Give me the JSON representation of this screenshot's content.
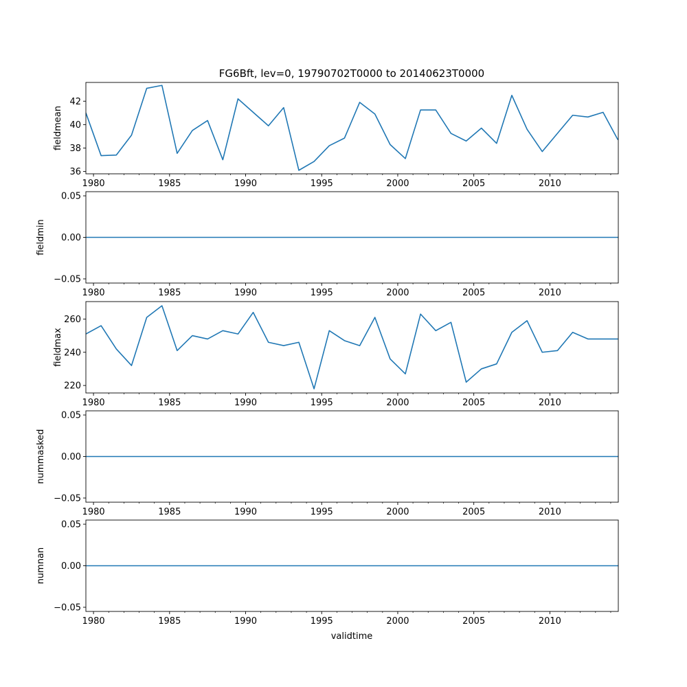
{
  "figure": {
    "title": "FG6Bft, lev=0, 19790702T0000 to 20140623T0000",
    "xlabel": "validtime",
    "line_color": "#1f77b4"
  },
  "chart_data": [
    {
      "type": "line",
      "ylabel": "fieldmean",
      "xlim": [
        "1979-07-02",
        "2014-07-02"
      ],
      "ylim": [
        35.8,
        43.6
      ],
      "yticks": [
        36,
        38,
        40,
        42
      ],
      "ytick_labels": [
        "36",
        "38",
        "40",
        "42"
      ],
      "xticks": [
        1980,
        1985,
        1990,
        1995,
        2000,
        2005,
        2010
      ],
      "xtick_labels": [
        "1980",
        "1985",
        "1990",
        "1995",
        "2000",
        "2005",
        "2010"
      ],
      "series": [
        {
          "x": [
            "1979-07-02",
            "1980-07-02",
            "1981-07-02",
            "1982-07-02",
            "1983-07-02",
            "1984-07-02",
            "1985-07-02",
            "1986-07-02",
            "1987-07-02",
            "1988-07-02",
            "1989-07-02",
            "1990-07-02",
            "1991-07-02",
            "1992-07-02",
            "1993-07-02",
            "1994-07-02",
            "1995-07-02",
            "1996-07-02",
            "1997-07-02",
            "1998-07-02",
            "1999-07-02",
            "2000-07-02",
            "2001-07-02",
            "2002-07-02",
            "2003-07-02",
            "2004-07-02",
            "2005-07-02",
            "2006-07-02",
            "2007-07-02",
            "2008-07-02",
            "2009-07-02",
            "2010-07-02",
            "2011-07-02",
            "2012-07-02",
            "2013-07-02",
            "2014-06-23"
          ],
          "values": [
            41.0,
            37.35,
            37.4,
            39.1,
            43.1,
            43.35,
            37.55,
            39.5,
            40.35,
            37.0,
            42.2,
            41.05,
            39.9,
            41.45,
            36.1,
            36.85,
            38.2,
            38.85,
            41.9,
            40.9,
            38.3,
            37.1,
            41.25,
            41.25,
            39.25,
            38.6,
            39.7,
            38.4,
            42.5,
            39.6,
            37.7,
            39.25,
            40.8,
            40.65,
            41.05,
            38.7
          ]
        }
      ]
    },
    {
      "type": "line",
      "ylabel": "fieldmin",
      "xlim": [
        "1979-07-02",
        "2014-07-02"
      ],
      "ylim": [
        -0.055,
        0.055
      ],
      "yticks": [
        -0.05,
        0.0,
        0.05
      ],
      "ytick_labels": [
        "−0.05",
        "0.00",
        "0.05"
      ],
      "xticks": [
        1980,
        1985,
        1990,
        1995,
        2000,
        2005,
        2010
      ],
      "xtick_labels": [
        "1980",
        "1985",
        "1990",
        "1995",
        "2000",
        "2005",
        "2010"
      ],
      "series": [
        {
          "x": [
            "1979-07-02",
            "2014-07-02"
          ],
          "values": [
            0,
            0
          ]
        }
      ]
    },
    {
      "type": "line",
      "ylabel": "fieldmax",
      "xlim": [
        "1979-07-02",
        "2014-07-02"
      ],
      "ylim": [
        215.5,
        270.5
      ],
      "yticks": [
        220,
        240,
        260
      ],
      "ytick_labels": [
        "220",
        "240",
        "260"
      ],
      "xticks": [
        1980,
        1985,
        1990,
        1995,
        2000,
        2005,
        2010
      ],
      "xtick_labels": [
        "1980",
        "1985",
        "1990",
        "1995",
        "2000",
        "2005",
        "2010"
      ],
      "series": [
        {
          "x": [
            "1979-07-02",
            "1980-07-02",
            "1981-07-02",
            "1982-07-02",
            "1983-07-02",
            "1984-07-02",
            "1985-07-02",
            "1986-07-02",
            "1987-07-02",
            "1988-07-02",
            "1989-07-02",
            "1990-07-02",
            "1991-07-02",
            "1992-07-02",
            "1993-07-02",
            "1994-07-02",
            "1995-07-02",
            "1996-07-02",
            "1997-07-02",
            "1998-07-02",
            "1999-07-02",
            "2000-07-02",
            "2001-07-02",
            "2002-07-02",
            "2003-07-02",
            "2004-07-02",
            "2005-07-02",
            "2006-07-02",
            "2007-07-02",
            "2008-07-02",
            "2009-07-02",
            "2010-07-02",
            "2011-07-02",
            "2012-07-02",
            "2013-07-02",
            "2014-06-23"
          ],
          "values": [
            251,
            256,
            242,
            232,
            261,
            268,
            241,
            250,
            248,
            253,
            251,
            264,
            246,
            244,
            246,
            218,
            253,
            247,
            244,
            261,
            236,
            227,
            263,
            253,
            258,
            222,
            230,
            233,
            252,
            259,
            240,
            241,
            252,
            248,
            248,
            248
          ]
        }
      ]
    },
    {
      "type": "line",
      "ylabel": "nummasked",
      "xlim": [
        "1979-07-02",
        "2014-07-02"
      ],
      "ylim": [
        -0.055,
        0.055
      ],
      "yticks": [
        -0.05,
        0.0,
        0.05
      ],
      "ytick_labels": [
        "−0.05",
        "0.00",
        "0.05"
      ],
      "xticks": [
        1980,
        1985,
        1990,
        1995,
        2000,
        2005,
        2010
      ],
      "xtick_labels": [
        "1980",
        "1985",
        "1990",
        "1995",
        "2000",
        "2005",
        "2010"
      ],
      "series": [
        {
          "x": [
            "1979-07-02",
            "2014-07-02"
          ],
          "values": [
            0,
            0
          ]
        }
      ]
    },
    {
      "type": "line",
      "ylabel": "numnan",
      "xlim": [
        "1979-07-02",
        "2014-07-02"
      ],
      "ylim": [
        -0.055,
        0.055
      ],
      "yticks": [
        -0.05,
        0.0,
        0.05
      ],
      "ytick_labels": [
        "−0.05",
        "0.00",
        "0.05"
      ],
      "xticks": [
        1980,
        1985,
        1990,
        1995,
        2000,
        2005,
        2010
      ],
      "xtick_labels": [
        "1980",
        "1985",
        "1990",
        "1995",
        "2000",
        "2005",
        "2010"
      ],
      "series": [
        {
          "x": [
            "1979-07-02",
            "2014-07-02"
          ],
          "values": [
            0,
            0
          ]
        }
      ]
    }
  ]
}
